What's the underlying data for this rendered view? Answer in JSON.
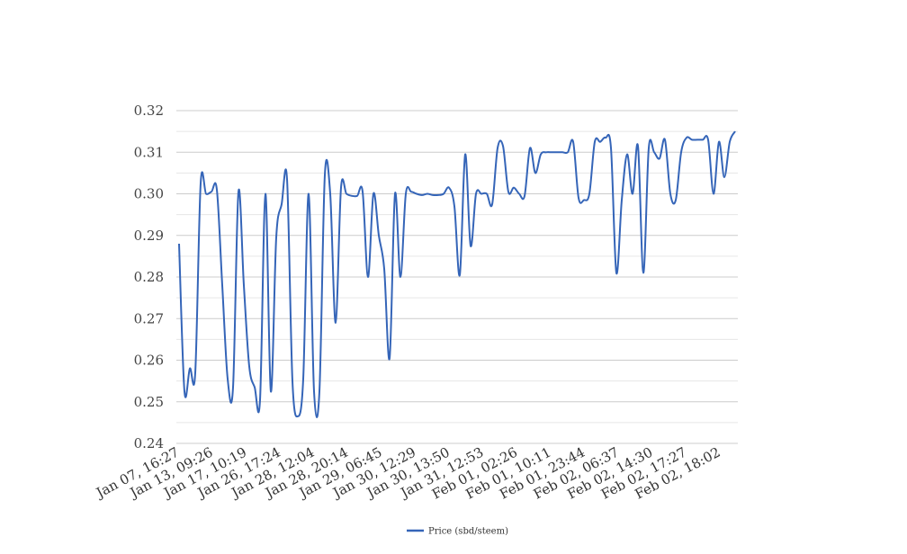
{
  "chart_data": {
    "type": "line",
    "title": "",
    "xlabel": "",
    "ylabel": "",
    "ylim": [
      0.24,
      0.32
    ],
    "y_ticks": [
      "0.24",
      "0.25",
      "0.26",
      "0.27",
      "0.28",
      "0.29",
      "0.30",
      "0.31",
      "0.32"
    ],
    "x_tick_labels": [
      "Jan 07, 16:27",
      "Jan 13, 09:26",
      "Jan 17, 10:19",
      "Jan 26, 17:24",
      "Jan 28, 12:04",
      "Jan 28, 20:14",
      "Jan 29, 06:45",
      "Jan 30, 12:29",
      "Jan 30, 13:50",
      "Jan 31, 12:53",
      "Feb 01, 02:26",
      "Feb 01, 10:11",
      "Feb 01, 23:44",
      "Feb 02, 06:37",
      "Feb 02, 14:30",
      "Feb 02, 17:27",
      "Feb 02, 18:02"
    ],
    "grid": true,
    "legend_position": "bottom",
    "colors": {
      "line": "#3565b8",
      "grid": "#cccccc",
      "minor_grid": "#e6e6e6"
    },
    "series": [
      {
        "name": "Price (sbd/steem)",
        "values": [
          0.288,
          0.2525,
          0.258,
          0.257,
          0.3025,
          0.3,
          0.3005,
          0.301,
          0.278,
          0.2555,
          0.2535,
          0.3005,
          0.278,
          0.2585,
          0.2535,
          0.2505,
          0.3,
          0.2525,
          0.2895,
          0.2975,
          0.3035,
          0.255,
          0.2465,
          0.2555,
          0.3,
          0.2525,
          0.2525,
          0.3045,
          0.3,
          0.269,
          0.3015,
          0.3,
          0.2995,
          0.2995,
          0.3005,
          0.28,
          0.3,
          0.29,
          0.282,
          0.2605,
          0.3,
          0.28,
          0.3,
          0.3005,
          0.3,
          0.2997,
          0.3,
          0.2997,
          0.2997,
          0.3,
          0.3015,
          0.297,
          0.2805,
          0.3095,
          0.2875,
          0.3,
          0.3,
          0.3,
          0.2975,
          0.311,
          0.3115,
          0.3005,
          0.3015,
          0.3,
          0.2995,
          0.311,
          0.305,
          0.3095,
          0.31,
          0.31,
          0.31,
          0.31,
          0.31,
          0.3125,
          0.299,
          0.2985,
          0.3,
          0.3125,
          0.3125,
          0.3135,
          0.311,
          0.281,
          0.2985,
          0.3095,
          0.3,
          0.3115,
          0.281,
          0.311,
          0.31,
          0.3085,
          0.313,
          0.3,
          0.2985,
          0.31,
          0.3135,
          0.313,
          0.313,
          0.313,
          0.313,
          0.3,
          0.3125,
          0.304,
          0.3125,
          0.315
        ]
      }
    ]
  }
}
